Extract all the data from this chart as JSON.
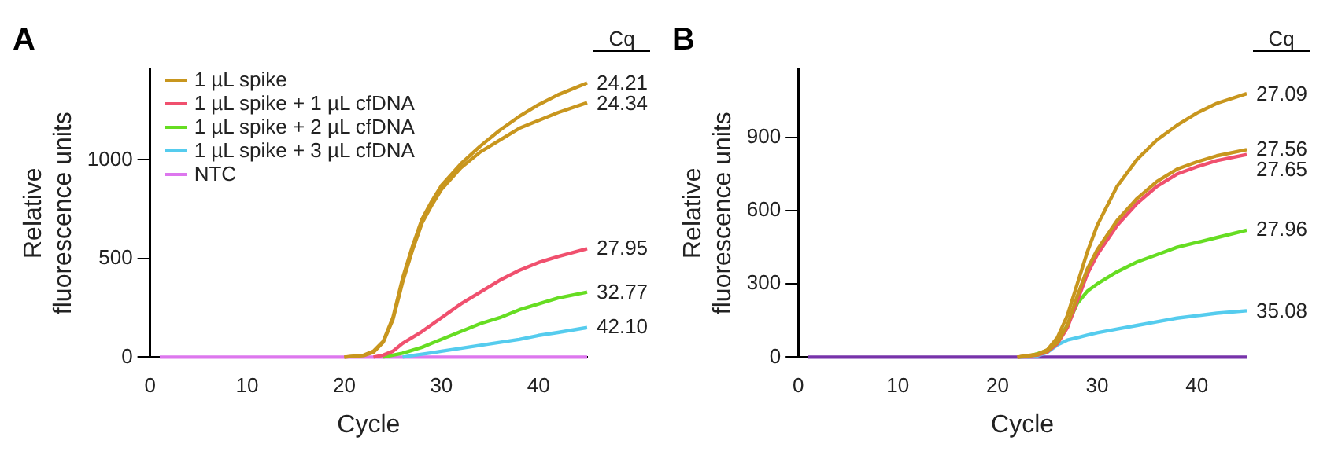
{
  "chart_data": [
    {
      "type": "line",
      "title": "A",
      "xlabel": "Cycle",
      "ylabel": "Relative fluorescence units",
      "legend": "top left",
      "grid": false,
      "marker": "none",
      "line_style": "solid",
      "x": [
        1,
        5,
        10,
        15,
        20,
        22,
        23,
        24,
        25,
        26,
        27,
        28,
        29,
        30,
        32,
        34,
        36,
        38,
        40,
        42,
        45
      ],
      "xlim": [
        0,
        45
      ],
      "xticks": [
        0,
        10,
        20,
        30,
        40
      ],
      "ylim": [
        0,
        1460
      ],
      "yticks": [
        0,
        500,
        1000
      ],
      "series": [
        {
          "name": "1 µL spike",
          "color": "#c8961e",
          "values": [
            null,
            null,
            null,
            null,
            0,
            10,
            30,
            80,
            200,
            400,
            560,
            700,
            790,
            870,
            980,
            1070,
            1150,
            1220,
            1280,
            1330,
            1390
          ]
        },
        {
          "color": "#c8961e",
          "values": [
            null,
            null,
            null,
            null,
            0,
            8,
            25,
            75,
            190,
            380,
            540,
            680,
            770,
            850,
            960,
            1040,
            1100,
            1160,
            1200,
            1240,
            1290
          ]
        },
        {
          "name": "1 µL spike + 1 µL cfDNA",
          "color": "#f0506e",
          "values": [
            null,
            null,
            null,
            null,
            null,
            null,
            0,
            10,
            30,
            70,
            100,
            130,
            165,
            200,
            270,
            330,
            390,
            440,
            480,
            510,
            550
          ]
        },
        {
          "name": "1 µL spike + 2 µL cfDNA",
          "color": "#66dd22",
          "values": [
            null,
            null,
            null,
            null,
            null,
            null,
            null,
            0,
            10,
            20,
            35,
            50,
            70,
            90,
            130,
            170,
            200,
            240,
            270,
            300,
            330
          ]
        },
        {
          "name": "1 µL spike + 3 µL cfDNA",
          "color": "#55ccee",
          "values": [
            null,
            null,
            null,
            null,
            null,
            null,
            null,
            null,
            null,
            0,
            8,
            15,
            22,
            30,
            45,
            60,
            75,
            90,
            110,
            125,
            150
          ]
        },
        {
          "name": "NTC",
          "color": "#dd77ee",
          "values": [
            0,
            0,
            0,
            0,
            0,
            0,
            0,
            0,
            0,
            0,
            0,
            0,
            0,
            0,
            0,
            0,
            0,
            0,
            0,
            0,
            0
          ]
        }
      ],
      "annotations": [
        "Cq",
        "24.21",
        "24.34",
        "27.95",
        "32.77",
        "42.10"
      ]
    },
    {
      "type": "line",
      "title": "B",
      "xlabel": "Cycle",
      "ylabel": "Relative fluorescence units",
      "grid": false,
      "marker": "none",
      "line_style": "solid",
      "x": [
        1,
        5,
        10,
        15,
        20,
        22,
        23,
        24,
        25,
        26,
        27,
        28,
        29,
        30,
        32,
        34,
        36,
        38,
        40,
        42,
        45
      ],
      "xlim": [
        0,
        45
      ],
      "xticks": [
        0,
        10,
        20,
        30,
        40
      ],
      "ylim": [
        0,
        1180
      ],
      "yticks": [
        0,
        300,
        600,
        900
      ],
      "series": [
        {
          "color": "#c8961e",
          "values": [
            null,
            null,
            null,
            null,
            null,
            0,
            6,
            12,
            30,
            80,
            170,
            300,
            430,
            540,
            700,
            810,
            890,
            950,
            1000,
            1040,
            1080
          ]
        },
        {
          "color": "#c8961e",
          "values": [
            null,
            null,
            null,
            null,
            null,
            0,
            5,
            10,
            25,
            60,
            130,
            250,
            360,
            440,
            560,
            650,
            720,
            770,
            800,
            825,
            850
          ]
        },
        {
          "color": "#f0506e",
          "values": [
            null,
            null,
            null,
            null,
            null,
            0,
            4,
            8,
            22,
            55,
            120,
            230,
            340,
            420,
            540,
            630,
            700,
            750,
            780,
            805,
            830
          ]
        },
        {
          "color": "#66dd22",
          "values": [
            null,
            null,
            null,
            null,
            null,
            0,
            3,
            14,
            28,
            65,
            130,
            220,
            270,
            300,
            350,
            390,
            420,
            450,
            470,
            490,
            520
          ]
        },
        {
          "color": "#55ccee",
          "values": [
            null,
            null,
            null,
            null,
            null,
            null,
            0,
            5,
            20,
            50,
            70,
            80,
            90,
            100,
            115,
            130,
            145,
            160,
            170,
            180,
            190
          ]
        },
        {
          "color": "#7733aa",
          "values": [
            0,
            0,
            0,
            0,
            0,
            0,
            0,
            0,
            0,
            0,
            0,
            0,
            0,
            0,
            0,
            0,
            0,
            0,
            0,
            0,
            0
          ]
        }
      ],
      "annotations": [
        "Cq",
        "27.09",
        "27.56",
        "27.65",
        "27.96",
        "35.08"
      ]
    }
  ]
}
